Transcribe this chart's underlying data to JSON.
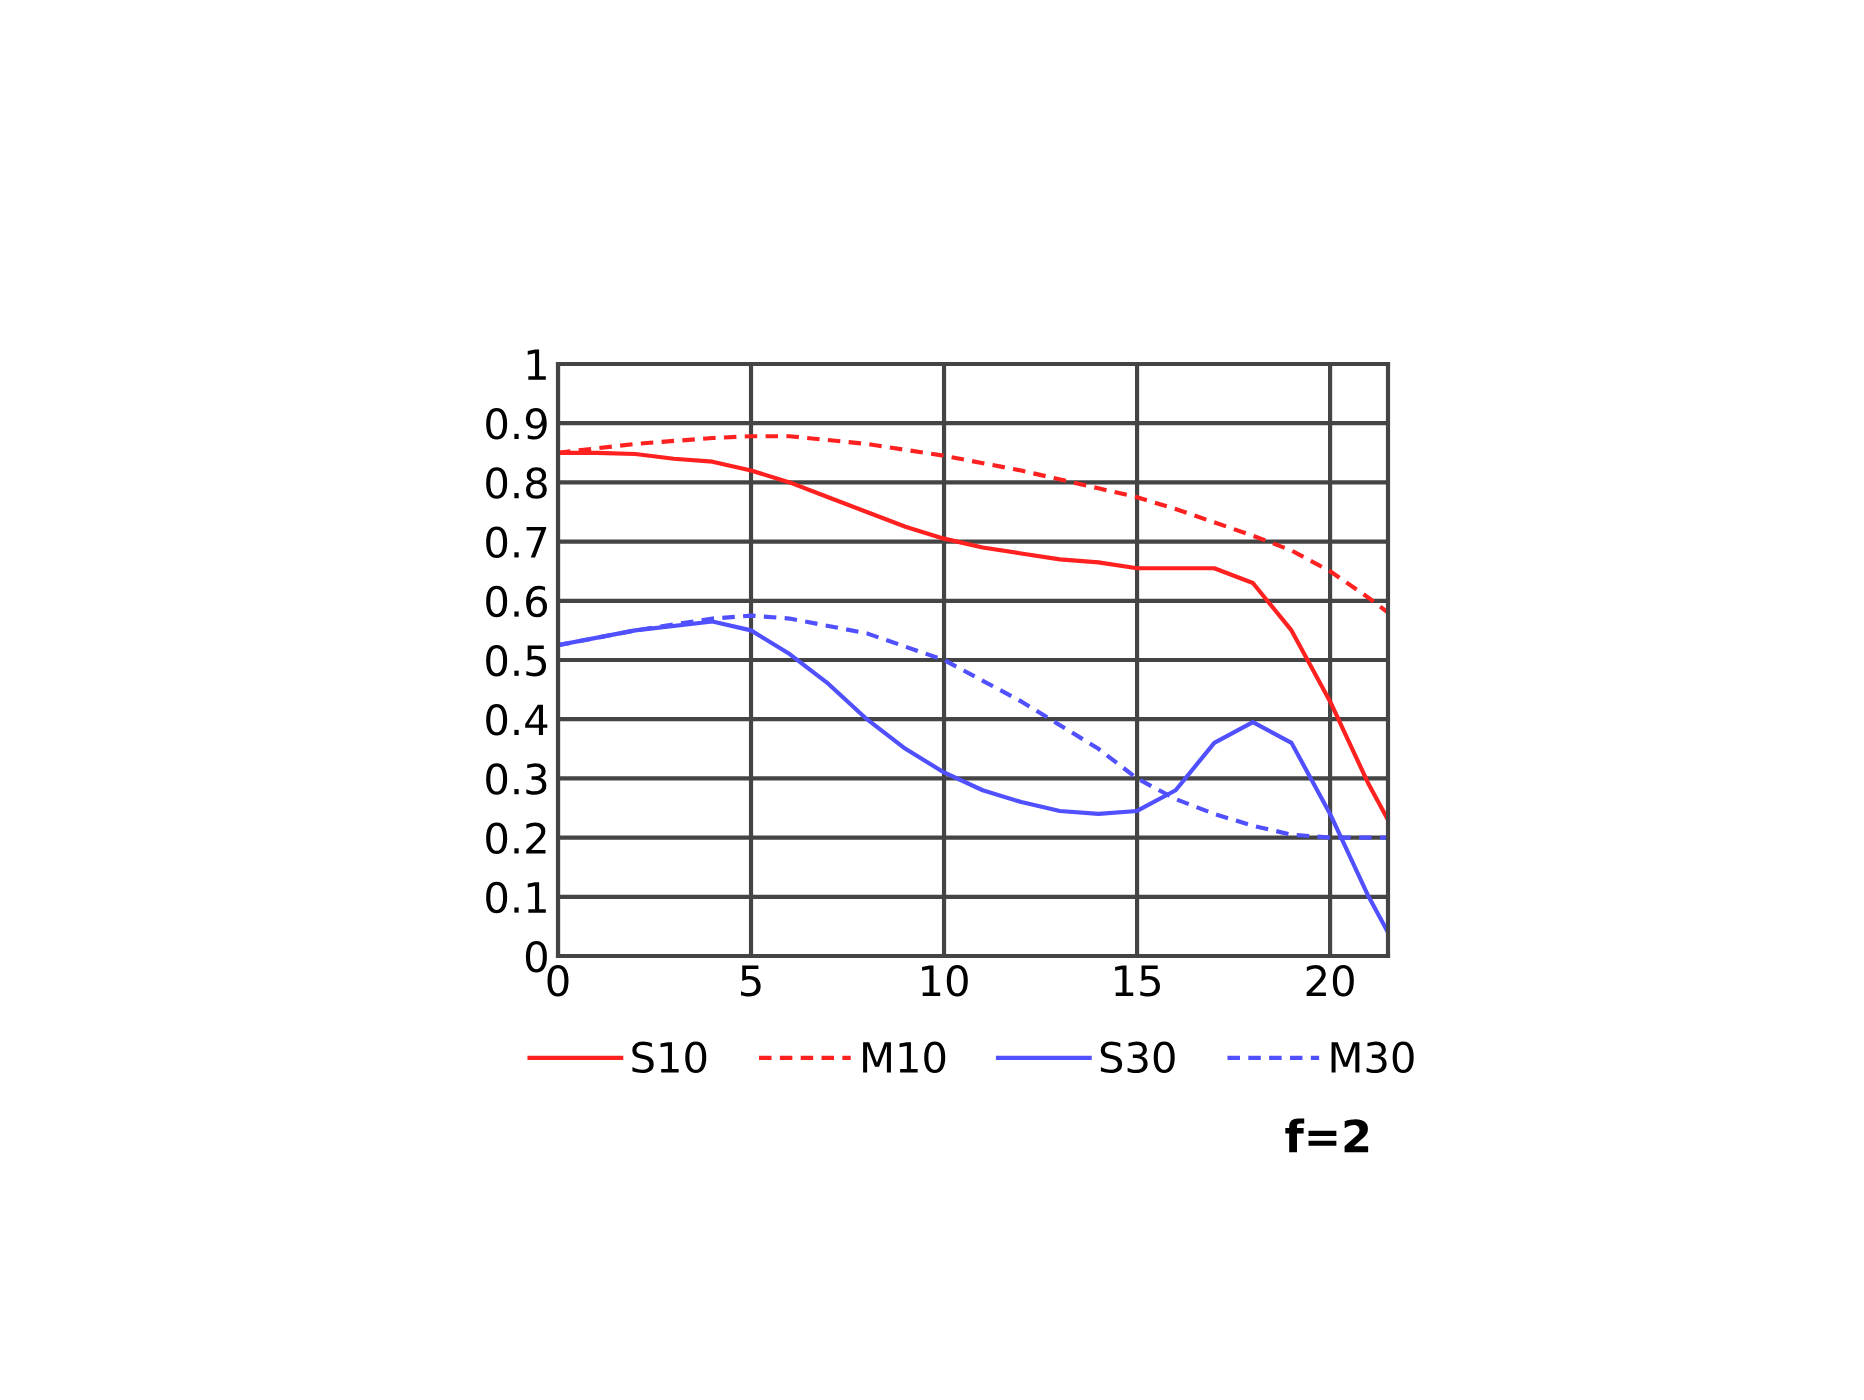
{
  "chart_data": {
    "type": "line",
    "xlim": [
      0,
      21.5
    ],
    "ylim": [
      0,
      1
    ],
    "xticks": [
      0,
      5,
      10,
      15,
      20
    ],
    "yticks": [
      0,
      0.1,
      0.2,
      0.3,
      0.4,
      0.5,
      0.6,
      0.7,
      0.8,
      0.9,
      1
    ],
    "grid": true,
    "legend": "bottom",
    "annotations": [
      "f=2"
    ],
    "series": [
      {
        "name": "S10",
        "color": "#ff2020",
        "line_style": "solid",
        "x": [
          0,
          1,
          2,
          3,
          4,
          5,
          6,
          7,
          8,
          9,
          10,
          11,
          12,
          13,
          14,
          15,
          16,
          17,
          18,
          19,
          20,
          21,
          21.5
        ],
        "values": [
          0.85,
          0.85,
          0.848,
          0.84,
          0.835,
          0.82,
          0.8,
          0.775,
          0.75,
          0.725,
          0.705,
          0.69,
          0.68,
          0.67,
          0.665,
          0.655,
          0.655,
          0.655,
          0.63,
          0.55,
          0.43,
          0.29,
          0.23
        ]
      },
      {
        "name": "M10",
        "color": "#ff2020",
        "line_style": "dashed",
        "x": [
          0,
          2,
          4,
          5,
          6,
          8,
          10,
          12,
          14,
          15,
          16,
          18,
          19,
          20,
          21,
          21.5
        ],
        "values": [
          0.85,
          0.865,
          0.875,
          0.878,
          0.878,
          0.865,
          0.845,
          0.82,
          0.79,
          0.775,
          0.755,
          0.71,
          0.685,
          0.65,
          0.605,
          0.58
        ]
      },
      {
        "name": "S30",
        "color": "#5050ff",
        "line_style": "solid",
        "x": [
          0,
          2,
          4,
          5,
          6,
          7,
          8,
          9,
          10,
          11,
          12,
          13,
          14,
          15,
          16,
          17,
          18,
          19,
          20,
          21,
          21.5
        ],
        "values": [
          0.525,
          0.55,
          0.565,
          0.55,
          0.51,
          0.46,
          0.4,
          0.35,
          0.31,
          0.28,
          0.26,
          0.245,
          0.24,
          0.245,
          0.28,
          0.36,
          0.395,
          0.36,
          0.24,
          0.1,
          0.04
        ]
      },
      {
        "name": "M30",
        "color": "#5050ff",
        "line_style": "dashed",
        "x": [
          0,
          2,
          4,
          5,
          6,
          8,
          10,
          12,
          14,
          15,
          16,
          17,
          18,
          19,
          20,
          21.5
        ],
        "values": [
          0.525,
          0.55,
          0.57,
          0.575,
          0.57,
          0.545,
          0.5,
          0.43,
          0.35,
          0.3,
          0.265,
          0.24,
          0.22,
          0.205,
          0.2,
          0.2
        ]
      }
    ]
  }
}
